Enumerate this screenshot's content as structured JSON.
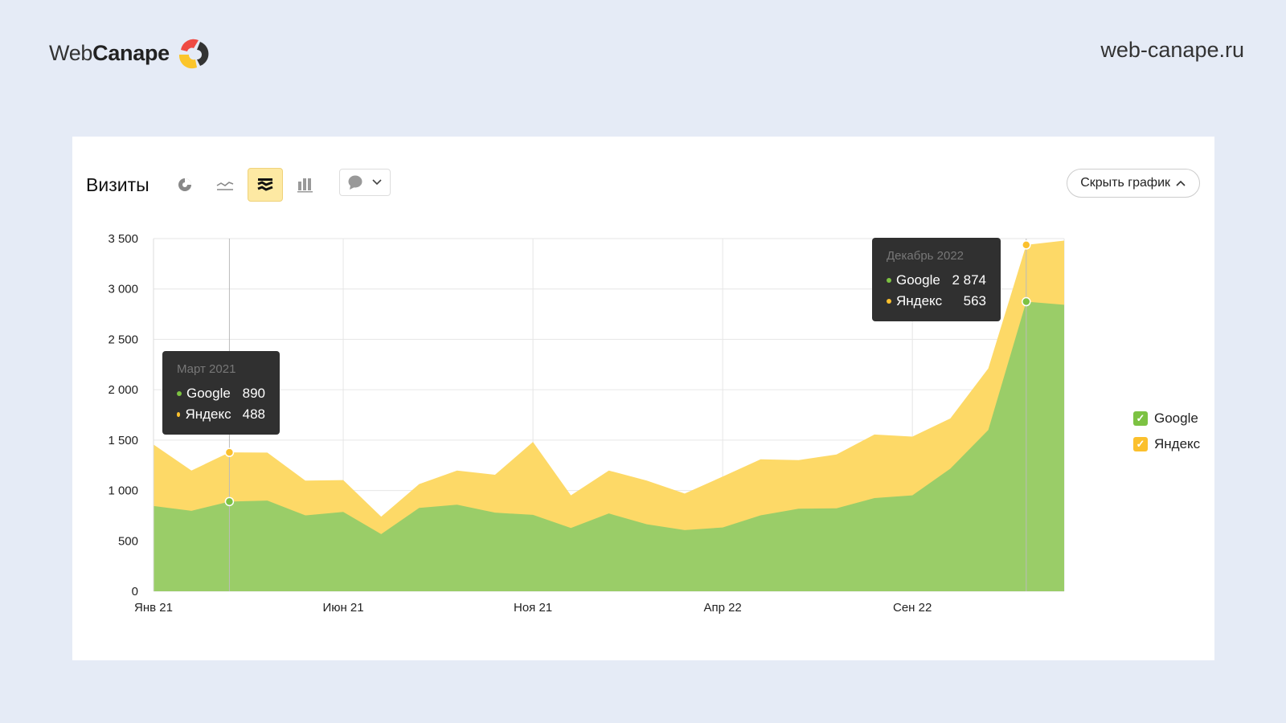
{
  "brand": {
    "logo_text_light": "Web",
    "logo_text_bold": "Canape",
    "site": "web-canape.ru"
  },
  "widget": {
    "title": "Визиты",
    "hide_chart_label": "Скрыть график",
    "toolbar": [
      {
        "icon": "pie-chart-icon"
      },
      {
        "icon": "line-chart-icon"
      },
      {
        "icon": "stacked-area-icon",
        "active": true
      },
      {
        "icon": "bar-chart-icon"
      }
    ],
    "annotation_dropdown_icon": "comment-icon"
  },
  "colors": {
    "google": "#9acd68",
    "google_dot": "#7cc242",
    "yandex": "#fdd967",
    "yandex_dot": "#fbc02d",
    "grid": "#e6e6e6"
  },
  "chart_data": {
    "type": "area",
    "stacked": true,
    "title": "Визиты",
    "xlabel": "",
    "ylabel": "",
    "ylim": [
      0,
      3500
    ],
    "yticks": [
      0,
      500,
      1000,
      1500,
      2000,
      2500,
      3000,
      3500
    ],
    "ytick_labels": [
      "0",
      "500",
      "1 000",
      "1 500",
      "2 000",
      "2 500",
      "3 000",
      "3 500"
    ],
    "x": [
      "2021-01",
      "2021-02",
      "2021-03",
      "2021-04",
      "2021-05",
      "2021-06",
      "2021-07",
      "2021-08",
      "2021-09",
      "2021-10",
      "2021-11",
      "2021-12",
      "2022-01",
      "2022-02",
      "2022-03",
      "2022-04",
      "2022-05",
      "2022-06",
      "2022-07",
      "2022-08",
      "2022-09",
      "2022-10",
      "2022-11",
      "2022-12",
      "2023-01"
    ],
    "xtick_labels": [
      {
        "index": 0,
        "label": "Янв 21"
      },
      {
        "index": 5,
        "label": "Июн 21"
      },
      {
        "index": 10,
        "label": "Ноя 21"
      },
      {
        "index": 15,
        "label": "Апр 22"
      },
      {
        "index": 20,
        "label": "Сен 22"
      }
    ],
    "series": [
      {
        "name": "Google",
        "values": [
          846,
          798,
          890,
          900,
          753,
          787,
          567,
          827,
          859,
          780,
          758,
          628,
          772,
          665,
          607,
          633,
          753,
          819,
          823,
          925,
          952,
          1217,
          1601,
          2874,
          2843
        ]
      },
      {
        "name": "Яндекс",
        "values": [
          610,
          400,
          488,
          476,
          345,
          316,
          173,
          236,
          339,
          376,
          724,
          324,
          426,
          433,
          363,
          505,
          557,
          483,
          534,
          631,
          583,
          498,
          610,
          563,
          637
        ]
      }
    ],
    "grid": true,
    "legend_position": "right",
    "legend": [
      "Google",
      "Яндекс"
    ],
    "tooltips": [
      {
        "index": 2,
        "title": "Март 2021",
        "rows": [
          {
            "name": "Google",
            "value": "890"
          },
          {
            "name": "Яндекс",
            "value": "488"
          }
        ]
      },
      {
        "index": 23,
        "title": "Декабрь 2022",
        "rows": [
          {
            "name": "Google",
            "value": "2 874"
          },
          {
            "name": "Яндекс",
            "value": "563"
          }
        ]
      }
    ]
  }
}
